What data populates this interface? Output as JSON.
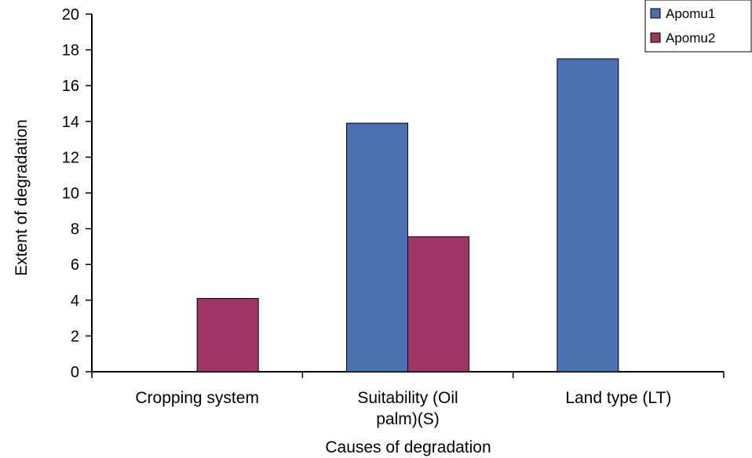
{
  "chart_data": {
    "type": "bar",
    "categories": [
      [
        "Cropping system"
      ],
      [
        "Suitability (Oil",
        "palm)(S)"
      ],
      [
        "Land type (LT)"
      ]
    ],
    "series": [
      {
        "name": "Apomu1",
        "values": [
          null,
          13.9,
          17.5
        ],
        "color": "#4a70b0"
      },
      {
        "name": "Apomu2",
        "values": [
          4.1,
          7.55,
          null
        ],
        "color": "#9e3765"
      }
    ],
    "yticks": [
      "0",
      "2",
      "4",
      "6",
      "8",
      "10",
      "12",
      "14",
      "16",
      "18",
      "20"
    ],
    "ylim": [
      0,
      20
    ],
    "xlabel": "Causes of degradation",
    "ylabel": "Extent of degradation",
    "legend": "top-right",
    "grid": false
  }
}
